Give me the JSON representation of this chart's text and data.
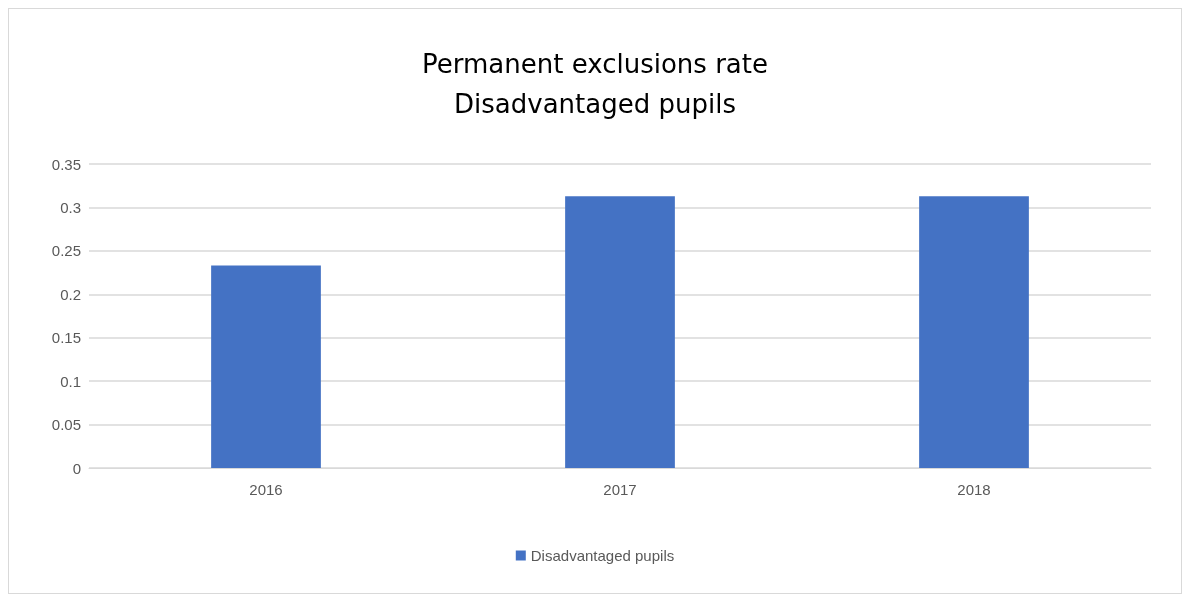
{
  "chart_data": {
    "type": "bar",
    "title": "Permanent exclusions rate\nDisadvantaged pupils",
    "categories": [
      "2016",
      "2017",
      "2018"
    ],
    "series": [
      {
        "name": "Disadvantaged pupils",
        "color": "#4472c4",
        "values": [
          0.233,
          0.313,
          0.313
        ]
      }
    ],
    "ylim": [
      0,
      0.35
    ],
    "yticks": [
      0,
      0.05,
      0.1,
      0.15,
      0.2,
      0.25,
      0.3,
      0.35
    ],
    "grid": "y",
    "legend": "bottom"
  }
}
